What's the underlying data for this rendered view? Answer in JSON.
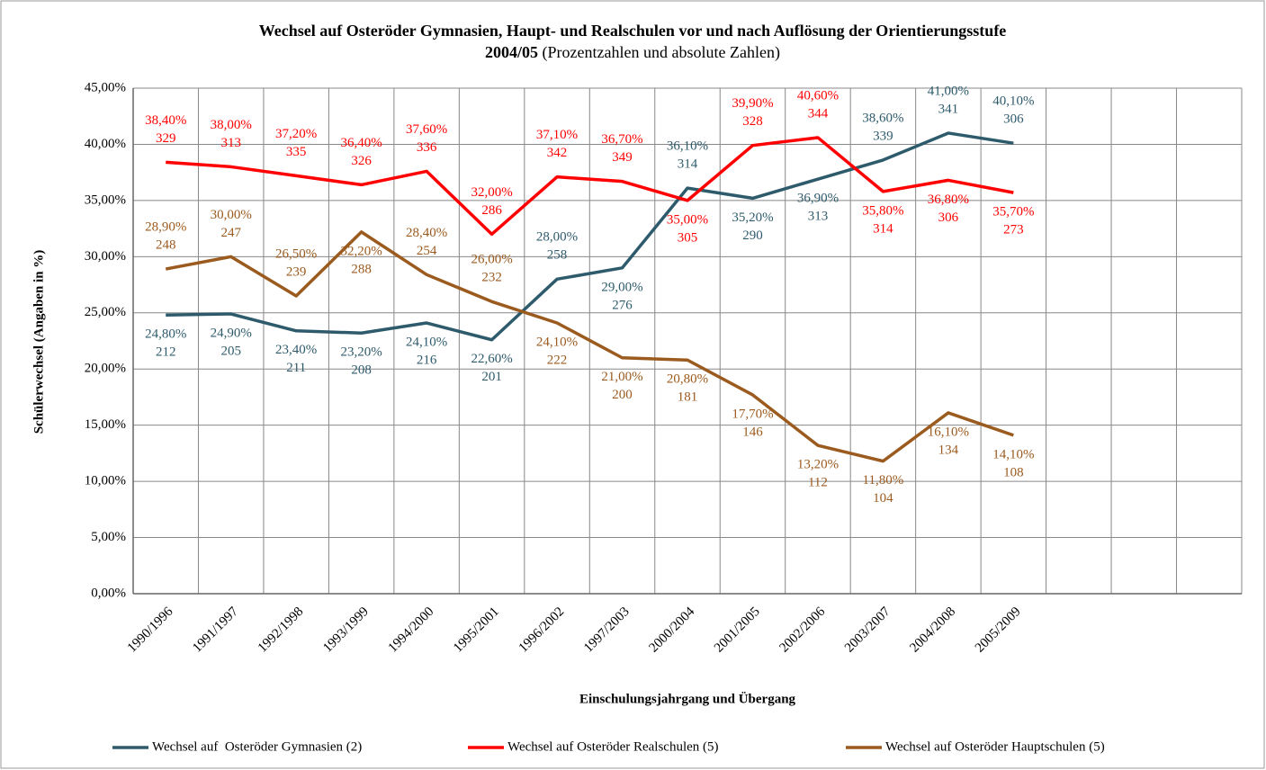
{
  "chart_data": {
    "type": "line",
    "title": "Wechsel auf Osteröder Gymnasien, Haupt- und Realschulen vor und nach Auflösung der Orientierungsstufe",
    "subtitle_bold": "2004/05",
    "subtitle": "(Prozentzahlen und absolute Zahlen)",
    "x_label": "Einschulungsjahrgang und Übergang",
    "y_label": "Schülerwechsel (Angaben in %)",
    "categories": [
      "1990/1996",
      "1991/1997",
      "1992/1998",
      "1993/1999",
      "1994/2000",
      "1995/2001",
      "1996/2002",
      "1997/2003",
      "2000/2004",
      "2001/2005",
      "2002/2006",
      "2003/2007",
      "2004/2008",
      "2005/2009",
      null,
      null,
      null
    ],
    "ylim": [
      0,
      45
    ],
    "yticks": [
      {
        "value": 0,
        "label": "0,00%"
      },
      {
        "value": 5,
        "label": "5,00%"
      },
      {
        "value": 10,
        "label": "10,00%"
      },
      {
        "value": 15,
        "label": "15,00%"
      },
      {
        "value": 20,
        "label": "20,00%"
      },
      {
        "value": 25,
        "label": "25,00%"
      },
      {
        "value": 30,
        "label": "30,00%"
      },
      {
        "value": 35,
        "label": "35,00%"
      },
      {
        "value": 40,
        "label": "40,00%"
      },
      {
        "value": 45,
        "label": "45,00%"
      }
    ],
    "grid": true,
    "legend": "bottom",
    "series": [
      {
        "name": "Wechsel auf  Osteröder Gymnasien (2)",
        "color": "#2e5b6c",
        "values": [
          24.8,
          24.9,
          23.4,
          23.2,
          24.1,
          22.6,
          28.0,
          29.0,
          36.1,
          35.2,
          36.9,
          38.6,
          41.0,
          40.1,
          null,
          null,
          null
        ],
        "value_labels": [
          "24,80%",
          "24,90%",
          "23,40%",
          "23,20%",
          "24,10%",
          "22,60%",
          "28,00%",
          "29,00%",
          "36,10%",
          "35,20%",
          "36,90%",
          "38,60%",
          "41,00%",
          "40,10%",
          null,
          null,
          null
        ],
        "counts": [
          212,
          205,
          211,
          208,
          216,
          201,
          258,
          276,
          314,
          290,
          313,
          339,
          341,
          306,
          null,
          null,
          null
        ]
      },
      {
        "name": "Wechsel auf Osteröder Realschulen (5)",
        "color": "#ff0000",
        "values": [
          38.4,
          38.0,
          37.2,
          36.4,
          37.6,
          32.0,
          37.1,
          36.7,
          35.0,
          39.9,
          40.6,
          35.8,
          36.8,
          35.7,
          null,
          null,
          null
        ],
        "value_labels": [
          "38,40%",
          "38,00%",
          "37,20%",
          "36,40%",
          "37,60%",
          "32,00%",
          "37,10%",
          "36,70%",
          "35,00%",
          "39,90%",
          "40,60%",
          "35,80%",
          "36,80%",
          "35,70%",
          null,
          null,
          null
        ],
        "counts": [
          329,
          313,
          335,
          326,
          336,
          286,
          342,
          349,
          305,
          328,
          344,
          314,
          306,
          273,
          null,
          null,
          null
        ]
      },
      {
        "name": "Wechsel auf Osteröder Hauptschulen (5)",
        "color": "#9b5a1e",
        "values": [
          28.9,
          30.0,
          26.5,
          32.2,
          28.4,
          26.0,
          24.1,
          21.0,
          20.8,
          17.7,
          13.2,
          11.8,
          16.1,
          14.1,
          null,
          null,
          null
        ],
        "value_labels": [
          "28,90%",
          "30,00%",
          "26,50%",
          "32,20%",
          "28,40%",
          "26,00%",
          "24,10%",
          "21,00%",
          "20,80%",
          "17,70%",
          "13,20%",
          "11,80%",
          "16,10%",
          "14,10%",
          null,
          null,
          null
        ],
        "counts": [
          248,
          247,
          239,
          288,
          254,
          232,
          222,
          200,
          181,
          146,
          112,
          104,
          134,
          108,
          null,
          null,
          null
        ]
      }
    ]
  }
}
